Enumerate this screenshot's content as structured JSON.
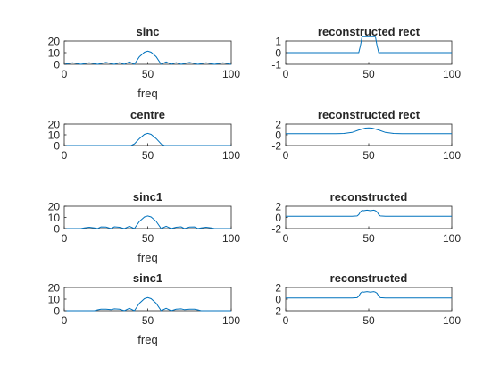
{
  "colors": {
    "series": "#0072BD",
    "axis": "#262626",
    "background": "#ffffff"
  },
  "chart_data": [
    {
      "type": "line",
      "title": "sinc",
      "xlabel": "freq",
      "xlim": [
        0,
        100
      ],
      "ylim": [
        0,
        20
      ],
      "xticks": [
        "0",
        "50",
        "100"
      ],
      "yticks": [
        "0",
        "10",
        "20"
      ],
      "x": [
        0,
        5,
        10,
        15,
        20,
        25,
        30,
        33,
        36,
        39,
        42,
        45,
        48,
        50,
        52,
        55,
        58,
        61,
        64,
        67,
        70,
        75,
        80,
        85,
        90,
        95,
        100
      ],
      "series": [
        {
          "values": [
            0,
            1.3,
            0,
            1.4,
            0,
            1.6,
            0,
            1.4,
            0,
            2.1,
            0,
            6.5,
            10.4,
            11.3,
            10.4,
            6.5,
            0,
            2.1,
            0,
            1.4,
            0,
            1.6,
            0,
            1.4,
            0,
            1.3,
            0
          ]
        }
      ]
    },
    {
      "type": "line",
      "title": "reconstructed rect",
      "xlabel": "",
      "xlim": [
        0,
        100
      ],
      "ylim": [
        -1,
        1
      ],
      "xticks": [
        "0",
        "50",
        "100"
      ],
      "yticks": [
        "-1",
        "0",
        "1"
      ],
      "x": [
        0,
        43,
        44,
        45,
        46,
        54,
        55,
        56,
        57,
        100
      ],
      "series": [
        {
          "values": [
            0,
            0,
            0,
            0.6,
            1.4,
            1.4,
            0.6,
            0,
            0,
            0
          ]
        }
      ]
    },
    {
      "type": "line",
      "title": "centre",
      "xlabel": "",
      "xlim": [
        0,
        100
      ],
      "ylim": [
        0,
        20
      ],
      "xticks": [
        "0",
        "50",
        "100"
      ],
      "yticks": [
        "0",
        "10",
        "20"
      ],
      "x": [
        0,
        40,
        42,
        45,
        48,
        50,
        52,
        55,
        58,
        60,
        100
      ],
      "series": [
        {
          "values": [
            0,
            0,
            1.5,
            6.5,
            10.4,
            11.3,
            10.4,
            6.5,
            1.5,
            0,
            0
          ]
        }
      ]
    },
    {
      "type": "line",
      "title": "reconstructed rect",
      "xlabel": "",
      "xlim": [
        0,
        100
      ],
      "ylim": [
        -2,
        2
      ],
      "xticks": [
        "0",
        "50",
        "100"
      ],
      "yticks": [
        "-2",
        "0",
        "2"
      ],
      "x": [
        0,
        30,
        35,
        40,
        44,
        48,
        50,
        52,
        56,
        60,
        65,
        70,
        100
      ],
      "series": [
        {
          "values": [
            0.2,
            0.2,
            0.25,
            0.45,
            0.9,
            1.25,
            1.3,
            1.25,
            0.9,
            0.45,
            0.25,
            0.2,
            0.2
          ]
        }
      ]
    },
    {
      "type": "line",
      "title": "sinc1",
      "xlabel": "freq",
      "xlim": [
        0,
        100
      ],
      "ylim": [
        0,
        20
      ],
      "xticks": [
        "0",
        "50",
        "100"
      ],
      "yticks": [
        "0",
        "10",
        "20"
      ],
      "x": [
        0,
        10,
        12,
        15,
        18,
        20,
        22,
        25,
        28,
        30,
        33,
        36,
        39,
        42,
        45,
        48,
        50,
        52,
        55,
        58,
        61,
        64,
        67,
        70,
        72,
        75,
        78,
        80,
        82,
        85,
        88,
        90,
        100
      ],
      "series": [
        {
          "values": [
            0,
            0,
            0.6,
            1.2,
            0.6,
            0,
            1.5,
            1.4,
            0,
            1.6,
            1.2,
            0,
            2.1,
            0,
            6.5,
            10.4,
            11.3,
            10.4,
            6.5,
            0,
            2.1,
            0,
            1.2,
            1.6,
            0,
            1.4,
            1.5,
            0,
            0.6,
            1.2,
            0.6,
            0,
            0
          ]
        }
      ]
    },
    {
      "type": "line",
      "title": "reconstructed",
      "xlabel": "",
      "xlim": [
        0,
        100
      ],
      "ylim": [
        -2,
        2
      ],
      "xticks": [
        "0",
        "50",
        "100"
      ],
      "yticks": [
        "-2",
        "0",
        "2"
      ],
      "x": [
        0,
        40,
        43,
        44,
        45,
        46,
        47,
        49,
        51,
        53,
        54,
        55,
        56,
        57,
        60,
        100
      ],
      "series": [
        {
          "values": [
            0.2,
            0.2,
            0.25,
            0.5,
            1.0,
            1.25,
            1.2,
            1.3,
            1.2,
            1.3,
            1.2,
            1.0,
            0.5,
            0.25,
            0.2,
            0.2
          ]
        }
      ]
    },
    {
      "type": "line",
      "title": "sinc1",
      "xlabel": "freq",
      "xlim": [
        0,
        100
      ],
      "ylim": [
        0,
        20
      ],
      "xticks": [
        "0",
        "50",
        "100"
      ],
      "yticks": [
        "0",
        "10",
        "20"
      ],
      "x": [
        0,
        18,
        20,
        22,
        25,
        28,
        30,
        33,
        36,
        39,
        42,
        45,
        48,
        50,
        52,
        55,
        58,
        61,
        64,
        67,
        70,
        72,
        75,
        78,
        80,
        82,
        100
      ],
      "series": [
        {
          "values": [
            0,
            0,
            0.8,
            1.4,
            1.3,
            0.9,
            1.6,
            1.3,
            0,
            2.1,
            0,
            6.5,
            10.4,
            11.3,
            10.4,
            6.5,
            0,
            2.1,
            0,
            1.3,
            1.6,
            0.9,
            1.3,
            1.4,
            0.8,
            0,
            0
          ]
        }
      ]
    },
    {
      "type": "line",
      "title": "reconstructed",
      "xlabel": "",
      "xlim": [
        0,
        100
      ],
      "ylim": [
        -2,
        2
      ],
      "xticks": [
        "0",
        "50",
        "100"
      ],
      "yticks": [
        "-2",
        "0",
        "2"
      ],
      "x": [
        0,
        40,
        43,
        44,
        45,
        46,
        47,
        49,
        51,
        53,
        54,
        55,
        56,
        57,
        60,
        100
      ],
      "series": [
        {
          "values": [
            0.2,
            0.2,
            0.25,
            0.5,
            1.0,
            1.25,
            1.2,
            1.3,
            1.2,
            1.3,
            1.2,
            1.0,
            0.5,
            0.25,
            0.2,
            0.2
          ]
        }
      ]
    }
  ]
}
